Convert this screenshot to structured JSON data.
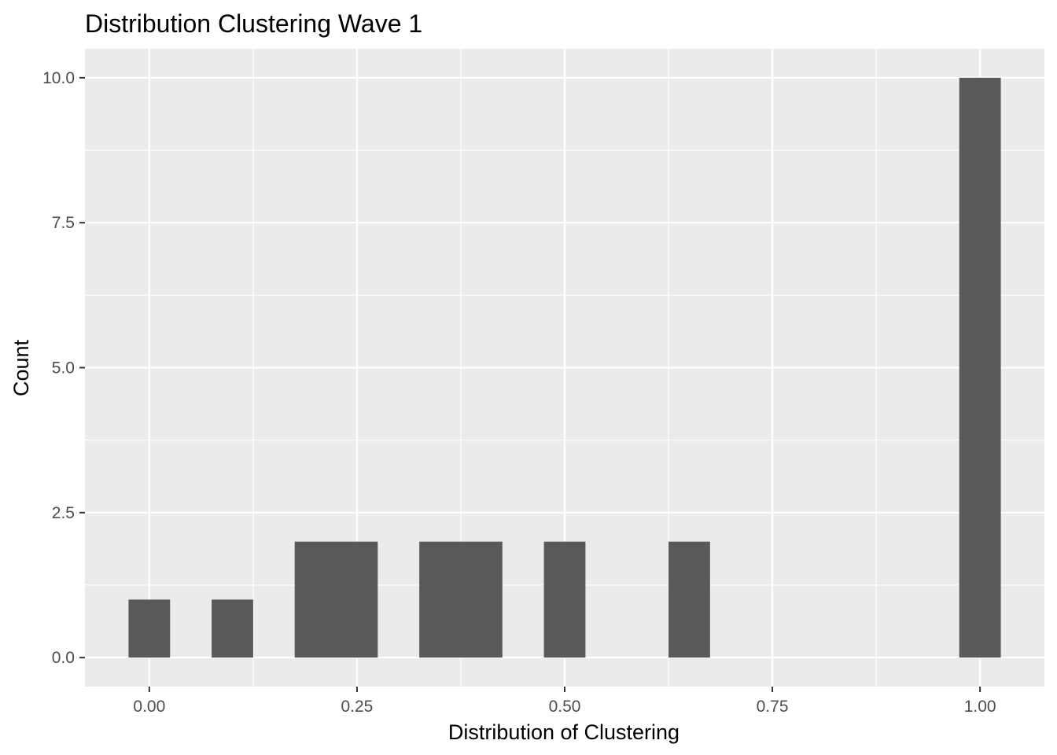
{
  "chart_data": {
    "type": "bar",
    "title": "Distribution Clustering Wave 1",
    "xlabel": "Distribution of Clustering",
    "ylabel": "Count",
    "xlim": [
      -0.0775,
      1.0775
    ],
    "ylim": [
      -0.5,
      10.5
    ],
    "x_ticks": [
      0.0,
      0.25,
      0.5,
      0.75,
      1.0
    ],
    "x_tick_labels": [
      "0.00",
      "0.25",
      "0.50",
      "0.75",
      "1.00"
    ],
    "x_minor_ticks": [
      0.125,
      0.375,
      0.625,
      0.875
    ],
    "y_ticks": [
      0.0,
      2.5,
      5.0,
      7.5,
      10.0
    ],
    "y_tick_labels": [
      "0.0",
      "2.5",
      "5.0",
      "7.5",
      "10.0"
    ],
    "y_minor_ticks": [
      1.25,
      3.75,
      6.25,
      8.75
    ],
    "grid": true,
    "colors": {
      "bar": "#595959",
      "panel": "#ebebeb",
      "grid": "#ffffff"
    },
    "bars": [
      {
        "x0": -0.025,
        "x1": 0.025,
        "count": 1
      },
      {
        "x0": 0.075,
        "x1": 0.125,
        "count": 1
      },
      {
        "x0": 0.175,
        "x1": 0.275,
        "count": 2
      },
      {
        "x0": 0.325,
        "x1": 0.425,
        "count": 2
      },
      {
        "x0": 0.475,
        "x1": 0.525,
        "count": 2
      },
      {
        "x0": 0.625,
        "x1": 0.675,
        "count": 2
      },
      {
        "x0": 0.975,
        "x1": 1.025,
        "count": 10
      }
    ]
  }
}
